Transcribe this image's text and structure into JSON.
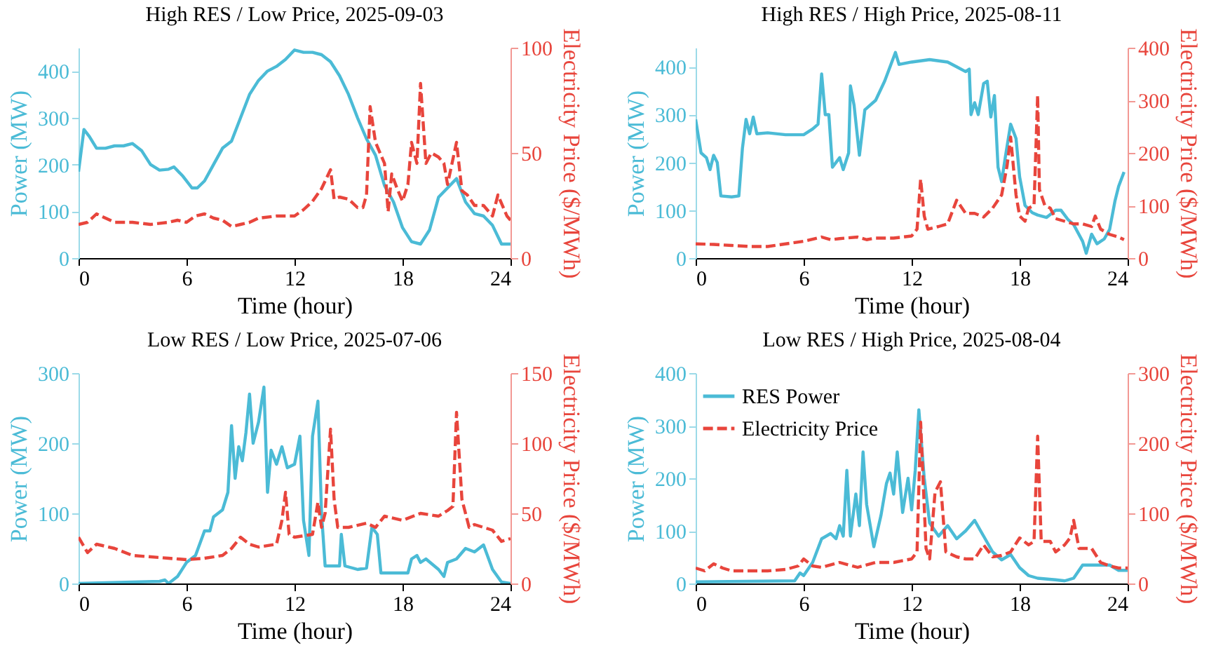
{
  "chart_data": [
    {
      "type": "line",
      "title": "High RES / Low Price, 2025-09-03",
      "xlabel": "Time (hour)",
      "ylabel": "Power (MW)",
      "y2label": "Electricity Price ($/MWh)",
      "xlim": [
        0,
        24
      ],
      "xticks": [
        0,
        6,
        12,
        18,
        24
      ],
      "ylim": [
        0,
        450
      ],
      "yticks": [
        0,
        100,
        200,
        300,
        400
      ],
      "y2lim": [
        0,
        100
      ],
      "y2ticks": [
        0,
        50,
        100
      ],
      "grid": false,
      "series": [
        {
          "color": "#4bbbd6",
          "line_style": "solid",
          "x": [
            0,
            0.3,
            0.6,
            1,
            1.5,
            2,
            2.5,
            3,
            3.5,
            4,
            4.5,
            5,
            5.3,
            5.8,
            6.3,
            6.6,
            7,
            7.5,
            8,
            8.5,
            9,
            9.5,
            10,
            10.5,
            11,
            11.5,
            12,
            12.5,
            13,
            13.5,
            14,
            14.5,
            15,
            15.5,
            16,
            16.5,
            17,
            17.5,
            18,
            18.5,
            19,
            19.5,
            20,
            20.5,
            21,
            21.5,
            22,
            22.5,
            23,
            23.5,
            24
          ],
          "values": [
            185,
            275,
            260,
            235,
            235,
            240,
            240,
            245,
            230,
            200,
            188,
            190,
            195,
            175,
            150,
            150,
            165,
            200,
            235,
            250,
            300,
            350,
            380,
            400,
            410,
            425,
            445,
            440,
            440,
            435,
            420,
            390,
            350,
            300,
            255,
            220,
            155,
            120,
            65,
            35,
            30,
            60,
            130,
            150,
            170,
            120,
            95,
            90,
            70,
            30,
            30
          ]
        },
        {
          "axis": "y2",
          "color": "#e8453c",
          "line_style": "dashed",
          "x": [
            0,
            0.5,
            1,
            1.5,
            2,
            3,
            4,
            5,
            5.5,
            6,
            6.5,
            7,
            7.5,
            8,
            8.5,
            9,
            9.5,
            10,
            11,
            12,
            12.5,
            13,
            13.5,
            14,
            14.2,
            14.5,
            15,
            15.5,
            15.8,
            16,
            16.2,
            16.5,
            17,
            17.2,
            17.4,
            17.7,
            18,
            18.3,
            18.5,
            18.8,
            19,
            19.3,
            19.6,
            20,
            20.3,
            20.5,
            21,
            21.3,
            21.6,
            22,
            22.5,
            23,
            23.3,
            23.8,
            24
          ],
          "values": [
            16,
            17,
            21,
            19,
            17,
            17,
            16,
            17,
            18,
            17,
            20,
            21,
            19,
            18,
            15,
            16,
            17,
            19,
            20,
            20,
            23,
            27,
            33,
            42,
            28,
            29,
            28,
            24,
            24,
            30,
            72,
            55,
            45,
            22,
            40,
            33,
            27,
            35,
            55,
            45,
            83,
            45,
            50,
            48,
            45,
            35,
            55,
            32,
            30,
            25,
            25,
            20,
            30,
            20,
            18
          ]
        }
      ]
    },
    {
      "type": "line",
      "title": "High RES / High Price, 2025-08-11",
      "xlabel": "Time (hour)",
      "ylabel": "Power (MW)",
      "y2label": "Electricity Price ($/MWh)",
      "xlim": [
        0,
        24
      ],
      "xticks": [
        0,
        6,
        12,
        18,
        24
      ],
      "ylim": [
        0,
        440
      ],
      "yticks": [
        0,
        100,
        200,
        300,
        400
      ],
      "y2lim": [
        0,
        400
      ],
      "y2ticks": [
        0,
        100,
        200,
        300,
        400
      ],
      "grid": false,
      "series": [
        {
          "color": "#4bbbd6",
          "line_style": "solid",
          "x": [
            0,
            0.3,
            0.6,
            0.8,
            1,
            1.2,
            1.4,
            2,
            2.4,
            2.6,
            2.8,
            3,
            3.2,
            3.4,
            4,
            5,
            6,
            6.5,
            6.8,
            7,
            7.2,
            7.4,
            7.6,
            7.8,
            8,
            8.2,
            8.5,
            8.6,
            8.8,
            9.1,
            9.4,
            10,
            10.5,
            10.8,
            11.1,
            11.3,
            12,
            13,
            14,
            14.5,
            15,
            15.2,
            15.3,
            15.5,
            15.7,
            16,
            16.2,
            16.4,
            16.6,
            16.8,
            17,
            17.2,
            17.5,
            17.8,
            18,
            18.3,
            18.7,
            19,
            19.5,
            20,
            20.3,
            20.7,
            21,
            21.5,
            21.7,
            22,
            22.3,
            22.7,
            23,
            23.3,
            23.5,
            23.8
          ],
          "values": [
            290,
            220,
            210,
            185,
            215,
            200,
            130,
            128,
            130,
            230,
            290,
            260,
            295,
            260,
            262,
            258,
            258,
            270,
            280,
            385,
            300,
            300,
            190,
            200,
            210,
            185,
            220,
            360,
            320,
            215,
            310,
            330,
            370,
            400,
            430,
            405,
            410,
            415,
            410,
            400,
            390,
            395,
            300,
            325,
            300,
            365,
            370,
            295,
            340,
            190,
            160,
            210,
            280,
            250,
            170,
            110,
            95,
            90,
            85,
            100,
            100,
            80,
            70,
            35,
            10,
            50,
            30,
            40,
            60,
            120,
            150,
            180
          ]
        },
        {
          "axis": "y2",
          "color": "#e8453c",
          "line_style": "dashed",
          "x": [
            0,
            1,
            2,
            3,
            4,
            5,
            6,
            7,
            7.5,
            8,
            9,
            9.5,
            10,
            11,
            12,
            12.3,
            12.5,
            12.7,
            12.9,
            13.5,
            14,
            14.5,
            15,
            15.5,
            16,
            16.5,
            17,
            17.3,
            17.5,
            17.8,
            18,
            18.3,
            18.5,
            18.8,
            19,
            19.1,
            19.4,
            19.7,
            20,
            20.5,
            21,
            21.5,
            22,
            22.2,
            22.5,
            23,
            23.5,
            23.8
          ],
          "values": [
            27,
            26,
            24,
            22,
            22,
            27,
            32,
            40,
            35,
            37,
            40,
            35,
            38,
            38,
            42,
            55,
            150,
            80,
            55,
            60,
            65,
            110,
            85,
            85,
            78,
            95,
            120,
            175,
            230,
            120,
            80,
            70,
            95,
            100,
            310,
            130,
            100,
            95,
            75,
            70,
            65,
            65,
            60,
            80,
            55,
            45,
            40,
            35
          ]
        }
      ]
    },
    {
      "type": "line",
      "title": "Low RES / Low Price, 2025-07-06",
      "xlabel": "Time (hour)",
      "ylabel": "Power (MW)",
      "y2label": "Electricity Price ($/MWh)",
      "xlim": [
        0,
        24
      ],
      "xticks": [
        0,
        6,
        12,
        18,
        24
      ],
      "ylim": [
        0,
        300
      ],
      "yticks": [
        0,
        100,
        200,
        300
      ],
      "y2lim": [
        0,
        150
      ],
      "y2ticks": [
        0,
        50,
        100,
        150
      ],
      "grid": false,
      "series": [
        {
          "color": "#4bbbd6",
          "line_style": "solid",
          "x": [
            0,
            3,
            4.5,
            4.8,
            5,
            5.5,
            6,
            6.5,
            7,
            7.3,
            7.5,
            8,
            8.3,
            8.5,
            8.7,
            8.9,
            9.1,
            9.3,
            9.5,
            9.7,
            10,
            10.3,
            10.5,
            10.7,
            11,
            11.3,
            11.6,
            12,
            12.3,
            12.5,
            12.8,
            13,
            13.3,
            13.5,
            13.7,
            14,
            14.5,
            14.6,
            14.8,
            15.5,
            16,
            16.3,
            16.6,
            16.8,
            17.5,
            18,
            18.3,
            18.5,
            18.8,
            19,
            19.3,
            20,
            20.3,
            20.5,
            21,
            21.5,
            22,
            22.5,
            23,
            23.5,
            24
          ],
          "values": [
            0,
            2,
            3,
            5,
            0,
            10,
            30,
            40,
            75,
            75,
            95,
            105,
            130,
            225,
            150,
            195,
            175,
            215,
            270,
            200,
            230,
            280,
            130,
            190,
            170,
            195,
            165,
            170,
            210,
            90,
            40,
            210,
            260,
            100,
            25,
            25,
            25,
            70,
            25,
            20,
            22,
            80,
            70,
            15,
            15,
            15,
            15,
            35,
            40,
            30,
            35,
            20,
            10,
            30,
            35,
            50,
            45,
            55,
            20,
            2,
            0
          ]
        },
        {
          "axis": "y2",
          "color": "#e8453c",
          "line_style": "dashed",
          "x": [
            0,
            0.5,
            1,
            2,
            3,
            5,
            6,
            7,
            8,
            8.5,
            9,
            9.5,
            10,
            11,
            11.3,
            11.5,
            11.7,
            12,
            13,
            13.3,
            13.5,
            13.7,
            14,
            14.2,
            14.4,
            15,
            16,
            16.5,
            17,
            18,
            19,
            20,
            20.5,
            20.8,
            21,
            21.3,
            21.7,
            22,
            23,
            23.5,
            24
          ],
          "values": [
            33,
            22,
            28,
            25,
            20,
            18,
            17,
            18,
            20,
            25,
            33,
            28,
            26,
            28,
            45,
            65,
            35,
            33,
            35,
            58,
            40,
            50,
            110,
            60,
            40,
            40,
            43,
            40,
            48,
            45,
            50,
            48,
            52,
            55,
            122,
            60,
            40,
            42,
            38,
            30,
            32
          ]
        }
      ]
    },
    {
      "type": "line",
      "title": "Low RES / High Price, 2025-08-04",
      "xlabel": "Time (hour)",
      "ylabel": "Power (MW)",
      "y2label": "Electricity Price ($/MWh)",
      "xlim": [
        0,
        24
      ],
      "xticks": [
        0,
        6,
        12,
        18,
        24
      ],
      "ylim": [
        0,
        400
      ],
      "yticks": [
        0,
        100,
        200,
        300,
        400
      ],
      "y2lim": [
        0,
        300
      ],
      "y2ticks": [
        0,
        100,
        200,
        300
      ],
      "grid": false,
      "legend": "top left",
      "series": [
        {
          "name": "RES Power",
          "color": "#4bbbd6",
          "line_style": "solid",
          "x": [
            0,
            5.5,
            5.8,
            6,
            6.5,
            7,
            7.5,
            7.8,
            8,
            8.2,
            8.4,
            8.6,
            8.9,
            9.1,
            9.3,
            9.5,
            9.9,
            10.3,
            10.6,
            10.8,
            11,
            11.2,
            11.5,
            11.8,
            12,
            12.2,
            12.4,
            12.7,
            13,
            13.5,
            14,
            14.5,
            15,
            15.5,
            16,
            16.5,
            17,
            17.5,
            18,
            18.5,
            19,
            20,
            20.5,
            21,
            21.5,
            22,
            23,
            23.5,
            24
          ],
          "values": [
            3,
            5,
            20,
            15,
            40,
            85,
            95,
            85,
            110,
            90,
            215,
            90,
            170,
            110,
            250,
            150,
            70,
            130,
            190,
            210,
            170,
            250,
            135,
            200,
            140,
            215,
            330,
            200,
            115,
            90,
            110,
            85,
            100,
            120,
            90,
            60,
            45,
            55,
            30,
            15,
            10,
            7,
            5,
            10,
            35,
            35,
            35,
            25,
            25
          ]
        },
        {
          "name": "Electricity Price",
          "axis": "y2",
          "color": "#e8453c",
          "line_style": "dashed",
          "x": [
            0,
            0.5,
            1,
            1.5,
            2,
            3,
            4,
            5,
            5.7,
            6,
            6.5,
            7,
            8,
            9,
            10,
            11,
            12,
            12.3,
            12.5,
            12.8,
            13,
            13.3,
            13.6,
            13.9,
            14.5,
            15,
            15.5,
            16,
            16.5,
            17,
            17.5,
            18,
            18.5,
            18.8,
            19,
            19.2,
            19.7,
            20,
            20.5,
            20.8,
            21,
            21.3,
            22,
            22.5,
            23,
            23.5,
            24
          ],
          "values": [
            22,
            18,
            28,
            22,
            18,
            18,
            18,
            20,
            25,
            35,
            25,
            23,
            30,
            23,
            30,
            30,
            35,
            45,
            230,
            50,
            35,
            130,
            145,
            45,
            38,
            35,
            35,
            55,
            38,
            40,
            45,
            65,
            55,
            60,
            210,
            60,
            60,
            45,
            55,
            65,
            90,
            50,
            50,
            30,
            25,
            22,
            22
          ]
        }
      ]
    }
  ]
}
